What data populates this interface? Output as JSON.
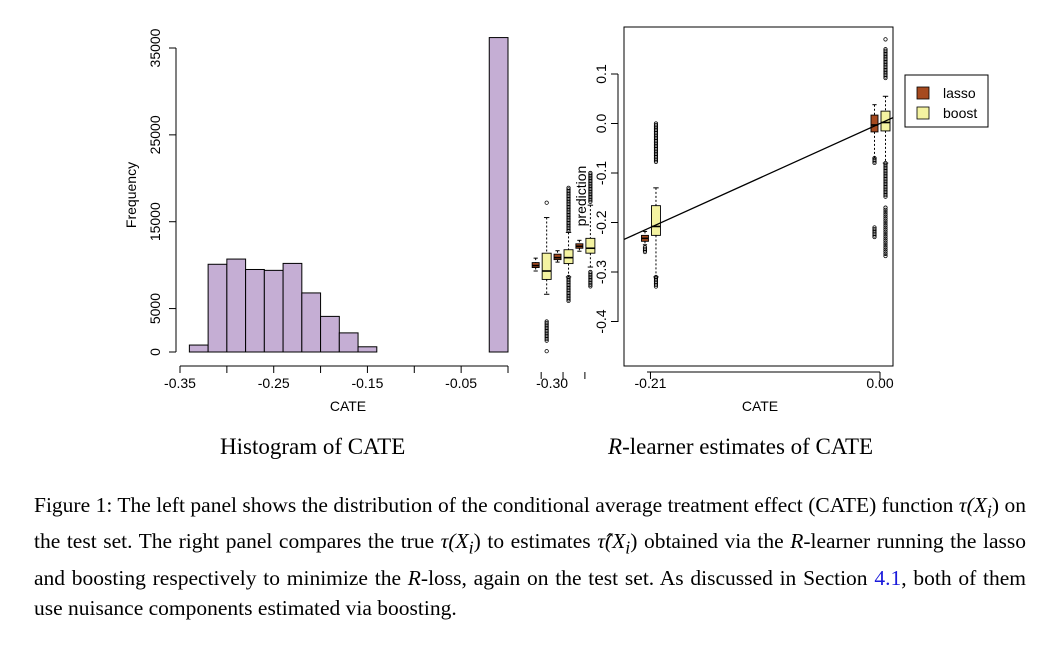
{
  "left_panel": {
    "caption": "Histogram of CATE"
  },
  "right_panel": {
    "caption_prefix": "R",
    "caption_suffix": "-learner estimates of CATE"
  },
  "colors": {
    "histogram_fill": "#c5aed4",
    "lasso_fill": "#a64a1f",
    "boost_fill": "#f4f3a1",
    "link": "#1a1adb"
  },
  "chart_data": [
    {
      "type": "bar",
      "xlabel": "CATE",
      "ylabel": "Frequency",
      "xlim": [
        -0.35,
        0.0
      ],
      "ylim": [
        0,
        35000
      ],
      "xticks": [
        "-0.35",
        "-0.25",
        "-0.15",
        "-0.05"
      ],
      "yticks": [
        "0",
        "5000",
        "15000",
        "25000",
        "35000"
      ],
      "bin_width": 0.02,
      "bins": [
        {
          "x0": -0.34,
          "x1": -0.32,
          "count": 800
        },
        {
          "x0": -0.32,
          "x1": -0.3,
          "count": 10100
        },
        {
          "x0": -0.3,
          "x1": -0.28,
          "count": 10700
        },
        {
          "x0": -0.28,
          "x1": -0.26,
          "count": 9500
        },
        {
          "x0": -0.26,
          "x1": -0.24,
          "count": 9400
        },
        {
          "x0": -0.24,
          "x1": -0.22,
          "count": 10200
        },
        {
          "x0": -0.22,
          "x1": -0.2,
          "count": 6800
        },
        {
          "x0": -0.2,
          "x1": -0.18,
          "count": 4100
        },
        {
          "x0": -0.18,
          "x1": -0.16,
          "count": 2200
        },
        {
          "x0": -0.16,
          "x1": -0.14,
          "count": 600
        },
        {
          "x0": -0.02,
          "x1": 0.0,
          "count": 36200
        }
      ]
    },
    {
      "type": "boxplot",
      "xlabel": "CATE",
      "ylabel": "prediction",
      "xticks": [
        "-0.30",
        "-0.21",
        "0.00"
      ],
      "yticks": [
        "-0.4",
        "-0.3",
        "-0.2",
        "-0.1",
        "0.0",
        "0.1"
      ],
      "ylim": [
        -0.47,
        0.2
      ],
      "legend": {
        "position": "top-right",
        "entries": [
          "lasso",
          "boost"
        ]
      },
      "reference_line": "y = x",
      "groups": [
        {
          "cate": -0.31,
          "lasso": {
            "min": -0.298,
            "q1": -0.291,
            "median": -0.287,
            "q3": -0.281,
            "max": -0.272
          },
          "boost": {
            "min": -0.345,
            "q1": -0.315,
            "median": -0.298,
            "q3": -0.262,
            "max": -0.19
          }
        },
        {
          "cate": -0.29,
          "lasso": {
            "min": -0.28,
            "q1": -0.275,
            "median": -0.271,
            "q3": -0.264,
            "max": -0.257
          },
          "boost": {
            "min": -0.31,
            "q1": -0.283,
            "median": -0.271,
            "q3": -0.255,
            "max": -0.22
          }
        },
        {
          "cate": -0.27,
          "lasso": {
            "min": -0.258,
            "q1": -0.252,
            "median": -0.248,
            "q3": -0.243,
            "max": -0.236
          },
          "boost": {
            "min": -0.29,
            "q1": -0.262,
            "median": -0.252,
            "q3": -0.232,
            "max": -0.165
          }
        },
        {
          "cate": -0.21,
          "lasso": {
            "min": -0.245,
            "q1": -0.238,
            "median": -0.232,
            "q3": -0.226,
            "max": -0.218
          },
          "boost": {
            "min": -0.31,
            "q1": -0.226,
            "median": -0.208,
            "q3": -0.166,
            "max": -0.13
          }
        },
        {
          "cate": 0.0,
          "lasso": {
            "min": -0.07,
            "q1": -0.017,
            "median": -0.003,
            "q3": 0.017,
            "max": 0.038
          },
          "boost": {
            "min": -0.08,
            "q1": -0.015,
            "median": 0.002,
            "q3": 0.025,
            "max": 0.055
          }
        }
      ]
    }
  ],
  "caption": {
    "label": "Figure 1:",
    "s1": " The left panel shows the distribution of the conditional average treatment effect (CATE) function ",
    "tau1": "τ(X",
    "sub": "i",
    "close": ")",
    "s2": " on the test set. The right panel compares the true ",
    "tau2": "τ(X",
    "s3": " to estimates ",
    "tauhat": "τ̂(X",
    "s4": " obtained via the ",
    "R1": "R",
    "s5": "-learner running the lasso and boosting respectively to minimize the ",
    "R2": "R",
    "s6": "-loss, again on the test set. As discussed in Section ",
    "ref": "4.1",
    "s7": ", both of them use nuisance components estimated via boosting."
  }
}
